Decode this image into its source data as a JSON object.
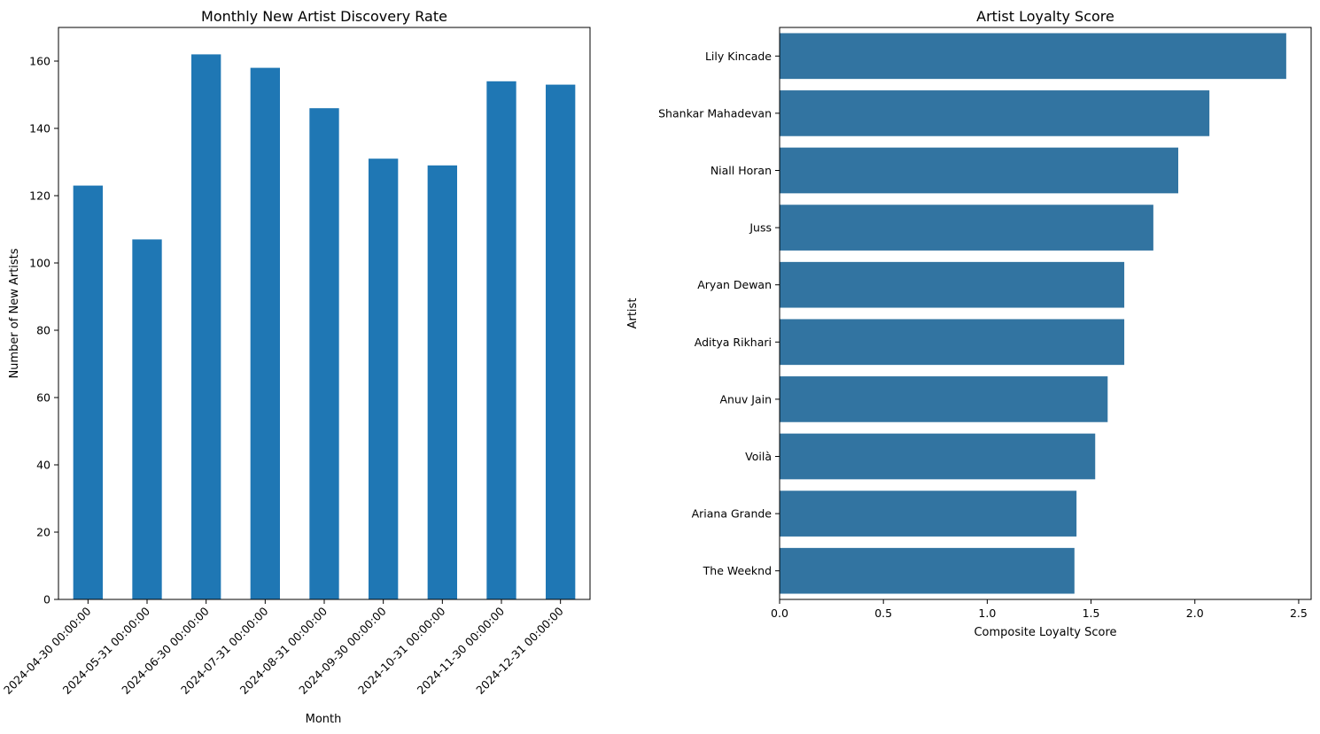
{
  "chart_data": [
    {
      "type": "bar",
      "title": "Monthly New Artist Discovery Rate",
      "xlabel": "Month",
      "ylabel": "Number of New Artists",
      "categories": [
        "2024-04-30 00:00:00",
        "2024-05-31 00:00:00",
        "2024-06-30 00:00:00",
        "2024-07-31 00:00:00",
        "2024-08-31 00:00:00",
        "2024-09-30 00:00:00",
        "2024-10-31 00:00:00",
        "2024-11-30 00:00:00",
        "2024-12-31 00:00:00"
      ],
      "values": [
        123,
        107,
        162,
        158,
        146,
        131,
        129,
        154,
        153
      ],
      "ylim": [
        0,
        170
      ],
      "yticks": [
        "0",
        "20",
        "40",
        "60",
        "80",
        "100",
        "120",
        "140",
        "160"
      ],
      "orientation": "vertical",
      "bar_color": "#1f77b4",
      "grid": false,
      "legend": "none"
    },
    {
      "type": "bar",
      "title": "Artist Loyalty Score",
      "xlabel": "Composite Loyalty Score",
      "ylabel": "Artist",
      "categories": [
        "Lily Kincade",
        "Shankar Mahadevan",
        "Niall Horan",
        "Juss",
        "Aryan Dewan",
        "Aditya Rikhari",
        "Anuv Jain",
        "Voilà",
        "Ariana Grande",
        "The Weeknd"
      ],
      "values": [
        2.44,
        2.07,
        1.92,
        1.8,
        1.66,
        1.66,
        1.58,
        1.52,
        1.43,
        1.42
      ],
      "xlim": [
        0,
        2.56
      ],
      "xticks": [
        "0.0",
        "0.5",
        "1.0",
        "1.5",
        "2.0",
        "2.5"
      ],
      "orientation": "horizontal",
      "bar_color": "#3274a1",
      "grid": false,
      "legend": "none"
    }
  ]
}
